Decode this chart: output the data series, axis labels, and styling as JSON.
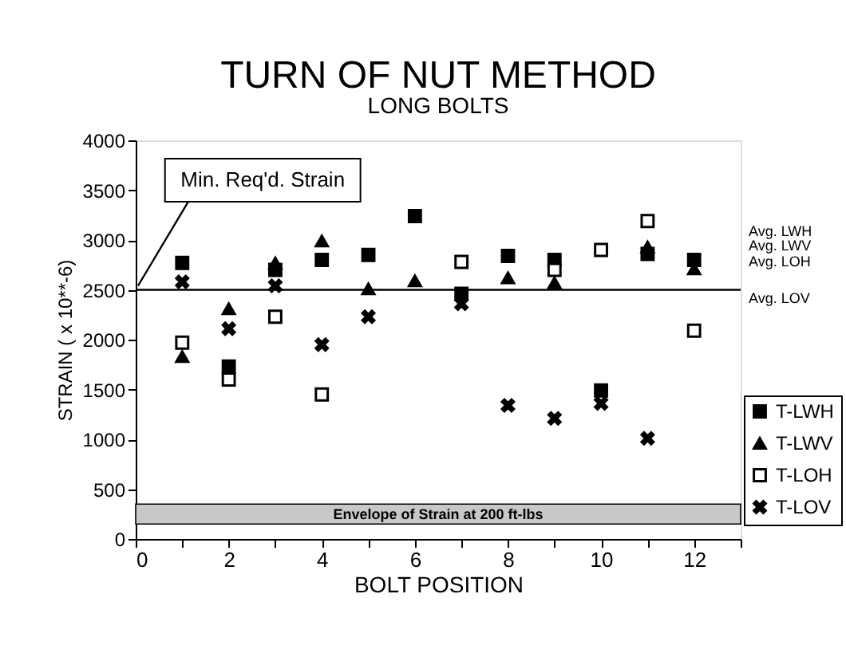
{
  "chart_data": {
    "type": "scatter",
    "title": "TURN OF NUT METHOD",
    "subtitle": "LONG BOLTS",
    "xlabel": "BOLT POSITION",
    "ylabel": "STRAIN ( x 10**-6)",
    "x": [
      1,
      2,
      3,
      4,
      5,
      6,
      7,
      8,
      9,
      10,
      11,
      12
    ],
    "series": [
      {
        "name": "T-LWH",
        "color": "#000000",
        "marker": "square",
        "values": [
          2770,
          1730,
          2700,
          2800,
          2850,
          3240,
          2460,
          2840,
          2800,
          1490,
          2860,
          2800
        ]
      },
      {
        "name": "T-LWV",
        "color": "#000000",
        "marker": "triangle",
        "values": [
          1830,
          2310,
          2770,
          2990,
          2510,
          2590,
          null,
          2620,
          2570,
          null,
          2930,
          2710
        ]
      },
      {
        "name": "T-LOH",
        "color": "#000000",
        "marker": "square",
        "values": [
          1970,
          1600,
          2230,
          1450,
          null,
          null,
          2780,
          null,
          2700,
          2900,
          3190,
          2090
        ]
      },
      {
        "name": "T-LOV",
        "color": "#000000",
        "marker": "cross",
        "values": [
          2580,
          2110,
          2540,
          1950,
          2230,
          null,
          2360,
          1340,
          1210,
          1360,
          1010,
          null
        ]
      }
    ],
    "xlim": [
      0,
      13
    ],
    "xticks": [
      0,
      {
        "value": 1,
        "label": null
      },
      2,
      {
        "value": 3,
        "label": null
      },
      4,
      {
        "value": 5,
        "label": null
      },
      6,
      {
        "value": 7,
        "label": null
      },
      8,
      {
        "value": 9,
        "label": null
      },
      10,
      {
        "value": 11,
        "label": null
      },
      12,
      {
        "value": 13,
        "label": null
      }
    ],
    "ylim": [
      0,
      4000
    ],
    "yticks": [
      0,
      500,
      1000,
      1500,
      2000,
      2500,
      3000,
      3500,
      4000
    ],
    "ref_lines": [
      {
        "axis": "y",
        "value": 2500,
        "label": "Min. Req'd. Strain",
        "color": "#000000"
      }
    ],
    "bands": [
      {
        "axis": "y",
        "from": 150,
        "to": 350,
        "label": "Envelope of Strain at 200 ft-lbs",
        "color": "#c8c8c8"
      }
    ],
    "annotations": [
      "Avg. LWH",
      "Avg. LWV",
      "Avg. LOH",
      "Avg. LOV"
    ],
    "legend": "right",
    "grid": false
  }
}
